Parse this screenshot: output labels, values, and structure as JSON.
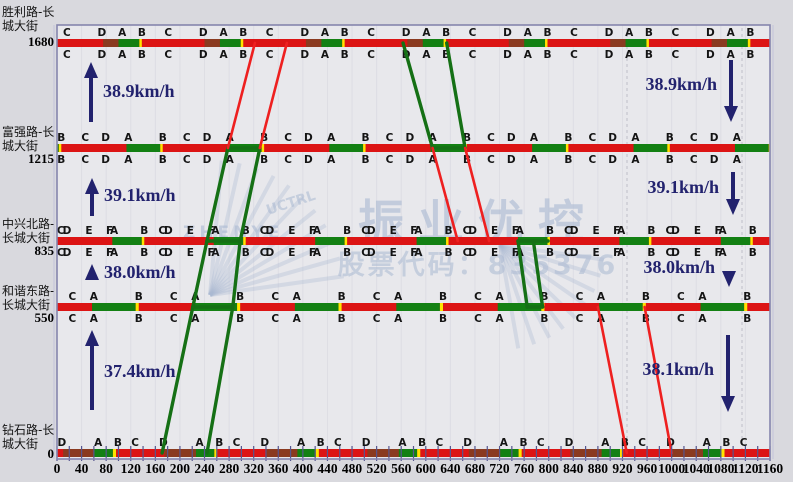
{
  "chart_data": {
    "type": "line",
    "subtype": "time-space-green-wave-diagram",
    "x_axis": {
      "min": 0,
      "max": 1160,
      "major_step": 40,
      "minor_step": 20,
      "tick_labels": [
        0,
        40,
        80,
        120,
        160,
        200,
        240,
        280,
        320,
        360,
        400,
        440,
        480,
        520,
        560,
        600,
        640,
        680,
        720,
        760,
        800,
        840,
        880,
        920,
        960,
        1000,
        1040,
        1080,
        1120,
        1160
      ]
    },
    "y_axis": {
      "unit": "m",
      "values": [
        0,
        550,
        835,
        1215,
        1680
      ]
    },
    "cycle_seconds": 165,
    "intersections": [
      {
        "name": "胜利路-长城大街",
        "name_lines": [
          "胜利路-长",
          "城大街"
        ],
        "distance": "1680",
        "letters": [
          {
            "ch": "C",
            "t": 16
          },
          {
            "ch": "D",
            "t": 73
          },
          {
            "ch": "A",
            "t": 106
          },
          {
            "ch": "B",
            "t": 138
          }
        ],
        "segments": [
          {
            "c": "red",
            "t0": 0,
            "t1": 75
          },
          {
            "c": "dark",
            "t0": 75,
            "t1": 100
          },
          {
            "c": "green",
            "t0": 100,
            "t1": 134
          },
          {
            "c": "yellow",
            "t0": 134,
            "t1": 138
          },
          {
            "c": "red",
            "t0": 138,
            "t1": 165
          }
        ],
        "letters_below": true
      },
      {
        "name": "富强路-长城大街",
        "name_lines": [
          "富强路-长",
          "城大街"
        ],
        "distance": "1215",
        "letters": [
          {
            "ch": "B",
            "t": 7
          },
          {
            "ch": "C",
            "t": 46
          },
          {
            "ch": "D",
            "t": 79
          },
          {
            "ch": "A",
            "t": 116
          }
        ],
        "segments": [
          {
            "c": "red",
            "t0": 7,
            "t1": 113
          },
          {
            "c": "green",
            "t0": 113,
            "t1": 168
          },
          {
            "c": "yellow",
            "t0": 168,
            "t1": 172
          }
        ],
        "letters_below": true
      },
      {
        "name": "中兴北路-长城大街",
        "name_lines": [
          "中兴北路-",
          "长城大街"
        ],
        "distance": "835",
        "letters": [
          {
            "ch": "CD",
            "t": 10
          },
          {
            "ch": "E",
            "t": 52
          },
          {
            "ch": "FA",
            "t": 88
          },
          {
            "ch": "B",
            "t": 142
          }
        ],
        "segments": [
          {
            "c": "green",
            "t0": 90,
            "t1": 138
          },
          {
            "c": "yellow",
            "t0": 138,
            "t1": 142
          },
          {
            "c": "red",
            "t0": 142,
            "t1": 255
          }
        ],
        "letters_below": true
      },
      {
        "name": "和谐东路-长城大街",
        "name_lines": [
          "和谐东路-",
          "长城大街"
        ],
        "distance": "550",
        "letters": [
          {
            "ch": "C",
            "t": 25
          },
          {
            "ch": "A",
            "t": 60
          },
          {
            "ch": "B",
            "t": 133
          }
        ],
        "segments": [
          {
            "c": "green",
            "t0": 57,
            "t1": 128
          },
          {
            "c": "yellow",
            "t0": 128,
            "t1": 133
          },
          {
            "c": "red",
            "t0": 133,
            "t1": 222
          }
        ],
        "letters_below": true
      },
      {
        "name": "钻石路-长城大街",
        "name_lines": [
          "钻石路-长",
          "城大街"
        ],
        "distance": "0",
        "letters": [
          {
            "ch": "D",
            "t": 8
          },
          {
            "ch": "A",
            "t": 67
          },
          {
            "ch": "B",
            "t": 99
          },
          {
            "ch": "C",
            "t": 127
          }
        ],
        "segments": [
          {
            "c": "dark",
            "t0": 10,
            "t1": 61
          },
          {
            "c": "green",
            "t0": 61,
            "t1": 91
          },
          {
            "c": "yellow",
            "t0": 91,
            "t1": 96
          },
          {
            "c": "red",
            "t0": 96,
            "t1": 175
          }
        ],
        "letters_below": false
      }
    ],
    "speed_annotations": [
      {
        "label": "38.9km/h",
        "direction": "up"
      },
      {
        "label": "39.1km/h",
        "direction": "up"
      },
      {
        "label": "38.0km/h",
        "direction": "up"
      },
      {
        "label": "37.4km/h",
        "direction": "up"
      },
      {
        "label": "38.9km/h",
        "direction": "down"
      },
      {
        "label": "39.1km/h",
        "direction": "down"
      },
      {
        "label": "38.0km/h",
        "direction": "down"
      },
      {
        "label": "38.1km/h",
        "direction": "down"
      }
    ],
    "bands": [
      {
        "t0": 171,
        "d0": 0,
        "t1": 221,
        "d1": 550,
        "c": "green"
      },
      {
        "t0": 244,
        "d0": 0,
        "t1": 286,
        "d1": 550,
        "c": "green"
      },
      {
        "t0": 221,
        "d0": 550,
        "t1": 286,
        "d1": 550,
        "c": "green"
      },
      {
        "t0": 221,
        "d0": 550,
        "t1": 244,
        "d1": 835,
        "c": "green"
      },
      {
        "t0": 286,
        "d0": 550,
        "t1": 298,
        "d1": 835,
        "c": "green"
      },
      {
        "t0": 244,
        "d0": 835,
        "t1": 298,
        "d1": 835,
        "c": "green"
      },
      {
        "t0": 244,
        "d0": 835,
        "t1": 278,
        "d1": 1215,
        "c": "green"
      },
      {
        "t0": 298,
        "d0": 835,
        "t1": 330,
        "d1": 1215,
        "c": "green"
      },
      {
        "t0": 278,
        "d0": 1215,
        "t1": 330,
        "d1": 1215,
        "c": "green"
      },
      {
        "t0": 278,
        "d0": 1215,
        "t1": 322,
        "d1": 1680,
        "c": "red"
      },
      {
        "t0": 330,
        "d0": 1215,
        "t1": 374,
        "d1": 1680,
        "c": "red"
      },
      {
        "t0": 563,
        "d0": 1680,
        "t1": 611,
        "d1": 1215,
        "c": "green"
      },
      {
        "t0": 634,
        "d0": 1680,
        "t1": 664,
        "d1": 1215,
        "c": "green"
      },
      {
        "t0": 611,
        "d0": 1215,
        "t1": 664,
        "d1": 1215,
        "c": "green"
      },
      {
        "t0": 611,
        "d0": 1215,
        "t1": 652,
        "d1": 835,
        "c": "red"
      },
      {
        "t0": 664,
        "d0": 1215,
        "t1": 703,
        "d1": 835,
        "c": "red"
      },
      {
        "t0": 750,
        "d0": 835,
        "t1": 799,
        "d1": 835,
        "c": "green"
      },
      {
        "t0": 750,
        "d0": 835,
        "t1": 765,
        "d1": 550,
        "c": "green"
      },
      {
        "t0": 775,
        "d0": 835,
        "t1": 790,
        "d1": 550,
        "c": "green"
      },
      {
        "t0": 765,
        "d0": 550,
        "t1": 790,
        "d1": 550,
        "c": "green"
      },
      {
        "t0": 880,
        "d0": 550,
        "t1": 927,
        "d1": 0,
        "c": "red"
      },
      {
        "t0": 956,
        "d0": 550,
        "t1": 1000,
        "d1": 0,
        "c": "red"
      }
    ],
    "watermark": {
      "title": "振业优控",
      "subtitle": "股票代码：835376",
      "brand_latin": "ZHENYE",
      "brand_latin_2": "UCTRL"
    },
    "colors": {
      "red": "#dc1414",
      "green": "#138013",
      "yellow": "#ffe400",
      "dark": "#8a3a20",
      "navy": "#22226e",
      "frame": "#8585ad",
      "tick": "#55558f",
      "plot_bg": "#e8e8ec",
      "outer_bg": "#d9d9de",
      "watermark": "#aab9d2",
      "letter": "#141414"
    }
  }
}
